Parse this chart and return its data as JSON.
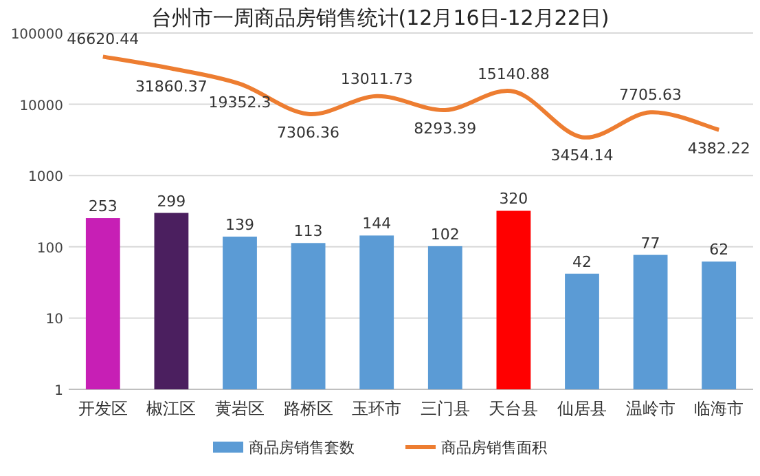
{
  "chart_data": {
    "type": "bar",
    "title": "台州市一周商品房销售统计(12月16日-12月22日)",
    "categories": [
      "开发区",
      "椒江区",
      "黄岩区",
      "路桥区",
      "玉环市",
      "三门县",
      "天台县",
      "仙居县",
      "温岭市",
      "临海市"
    ],
    "series": [
      {
        "name": "商品房销售套数",
        "color": "#5b9bd5",
        "colors": [
          "#c71fb5",
          "#4b1f5f",
          "#5b9bd5",
          "#5b9bd5",
          "#5b9bd5",
          "#5b9bd5",
          "#ff0000",
          "#5b9bd5",
          "#5b9bd5",
          "#5b9bd5"
        ],
        "values": [
          253,
          299,
          139,
          113,
          144,
          102,
          320,
          42,
          77,
          62
        ]
      },
      {
        "name": "商品房销售面积",
        "type": "line",
        "color": "#ed7d31",
        "values": [
          46620.44,
          31860.37,
          19352.3,
          7306.36,
          13011.73,
          8293.39,
          15140.88,
          3454.14,
          7705.63,
          4382.22
        ]
      }
    ],
    "log": "y",
    "ylim": [
      1,
      100000
    ],
    "yticks": [
      1,
      10,
      100,
      1000,
      10000,
      100000
    ],
    "grid": "y",
    "legend": "bottom",
    "data_labels": true,
    "marker": "none",
    "line_style": "solid"
  }
}
